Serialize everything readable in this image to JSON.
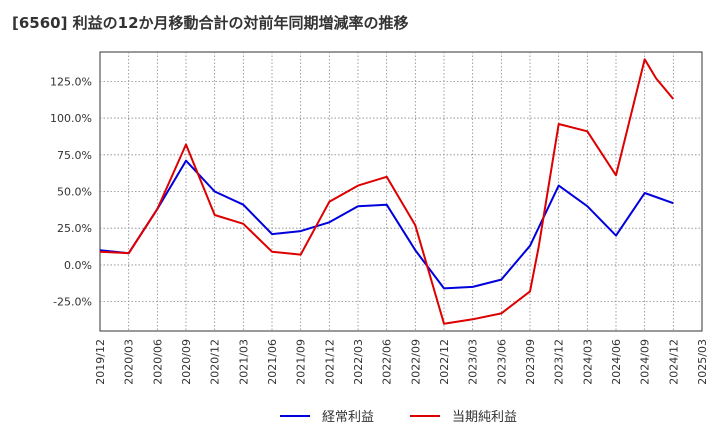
{
  "chart_data": {
    "type": "line",
    "title": "[6560]  利益の12か月移動合計の対前年同期増減率の推移",
    "xlabel": "",
    "ylabel": "",
    "ylim": [
      -0.45,
      1.45
    ],
    "yticks": [
      -0.25,
      0.0,
      0.25,
      0.5,
      0.75,
      1.0,
      1.25
    ],
    "ytick_labels": [
      "-25.0%",
      "0.0%",
      "25.0%",
      "50.0%",
      "75.0%",
      "100.0%",
      "125.0%"
    ],
    "x_categories": [
      "2019/12",
      "2020/03",
      "2020/06",
      "2020/09",
      "2020/12",
      "2021/03",
      "2021/06",
      "2021/09",
      "2021/12",
      "2022/03",
      "2022/06",
      "2022/09",
      "2022/12",
      "2023/03",
      "2023/06",
      "2023/09",
      "2023/12",
      "2024/03",
      "2024/06",
      "2024/09",
      "2024/12",
      "2025/03"
    ],
    "grid": true,
    "legend_position": "bottom",
    "series": [
      {
        "name": "経常利益",
        "color": "#0000dd",
        "values": [
          0.1,
          0.08,
          0.38,
          0.71,
          0.5,
          0.41,
          0.21,
          0.23,
          0.29,
          0.4,
          0.41,
          0.1,
          -0.16,
          -0.15,
          -0.1,
          0.13,
          0.54,
          0.4,
          0.2,
          0.49,
          0.42,
          null
        ]
      },
      {
        "name": "当期純利益",
        "color": "#dd0000",
        "values": [
          0.09,
          0.08,
          0.38,
          0.82,
          0.34,
          0.28,
          0.09,
          0.07,
          0.43,
          0.54,
          0.6,
          0.27,
          -0.4,
          -0.37,
          -0.33,
          -0.18,
          0.96,
          0.91,
          0.61,
          1.4,
          1.13,
          null
        ]
      }
    ],
    "extra_points": [
      {
        "series": "経常利益",
        "x": 2.0,
        "y": 0.38
      },
      {
        "series": "当期純利益",
        "x": 15.3,
        "y": 0.12
      },
      {
        "series": "当期純利益",
        "x": 19.4,
        "y": 1.27
      }
    ]
  }
}
